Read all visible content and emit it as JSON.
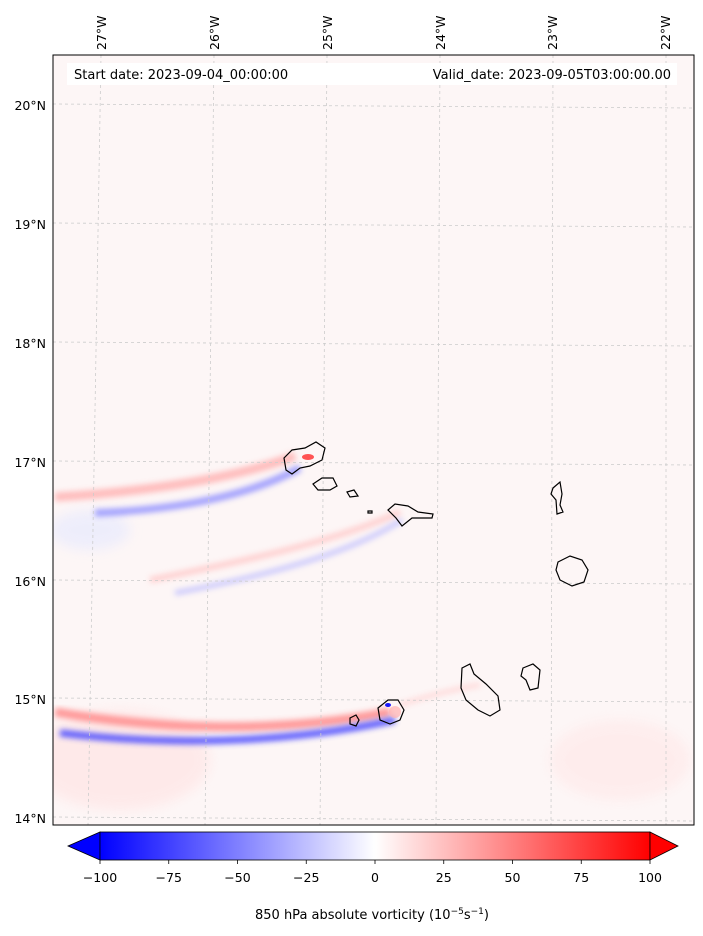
{
  "map": {
    "start_date": "Start date: 2023-09-04_00:00:00",
    "valid_date": "Valid_date: 2023-09-05T03:00:00.00",
    "lon_labels": [
      "27°W",
      "26°W",
      "25°W",
      "24°W",
      "23°W",
      "22°W"
    ],
    "lat_labels": [
      "20°N",
      "19°N",
      "18°N",
      "17°N",
      "16°N",
      "15°N",
      "14°N"
    ],
    "background_color": "#fdf6f6",
    "grid": true
  },
  "colorbar": {
    "ticks": [
      "−100",
      "−75",
      "−50",
      "−25",
      "0",
      "25",
      "50",
      "75",
      "100"
    ],
    "label_main": "850 hPa absolute vorticity (10",
    "label_exp1": "−5",
    "label_mid": "s",
    "label_exp2": "−1",
    "label_end": ")",
    "min_color": "#0000ff",
    "mid_color": "#ffffff",
    "max_color": "#ff0000"
  }
}
